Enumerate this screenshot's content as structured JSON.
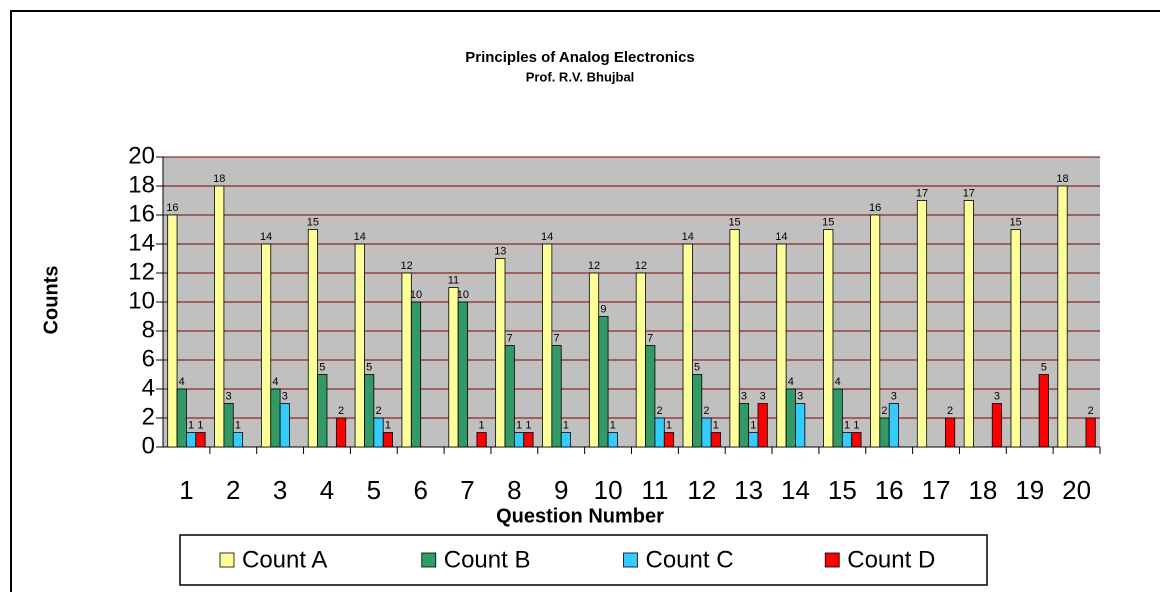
{
  "chart_data": {
    "type": "bar",
    "title": "Principles of Analog Electronics",
    "subtitle": "Prof. R.V. Bhujbal",
    "x_label": "Question Number",
    "y_label": "Counts",
    "categories": [
      "1",
      "2",
      "3",
      "4",
      "5",
      "6",
      "7",
      "8",
      "9",
      "10",
      "11",
      "12",
      "13",
      "14",
      "15",
      "16",
      "17",
      "18",
      "19",
      "20"
    ],
    "series": [
      {
        "name": "Count A",
        "color": "#ffff99",
        "values": [
          16,
          18,
          14,
          15,
          14,
          12,
          11,
          13,
          14,
          12,
          12,
          14,
          15,
          14,
          15,
          16,
          17,
          17,
          15,
          18
        ]
      },
      {
        "name": "Count B",
        "color": "#339966",
        "values": [
          4,
          3,
          4,
          5,
          5,
          10,
          10,
          7,
          7,
          9,
          7,
          5,
          3,
          4,
          4,
          2,
          null,
          null,
          null,
          null
        ]
      },
      {
        "name": "Count C",
        "color": "#33ccff",
        "values": [
          1,
          1,
          3,
          null,
          2,
          null,
          null,
          1,
          1,
          1,
          2,
          2,
          1,
          3,
          1,
          3,
          null,
          null,
          null,
          null
        ]
      },
      {
        "name": "Count D",
        "color": "#ff0000",
        "values": [
          1,
          null,
          null,
          2,
          1,
          null,
          1,
          1,
          null,
          null,
          1,
          1,
          3,
          null,
          1,
          null,
          2,
          3,
          5,
          2
        ]
      }
    ],
    "ylim": [
      0,
      20
    ],
    "yticks": [
      0,
      2,
      4,
      6,
      8,
      10,
      12,
      14,
      16,
      18,
      20
    ],
    "grid": true,
    "legend": "bottom"
  }
}
